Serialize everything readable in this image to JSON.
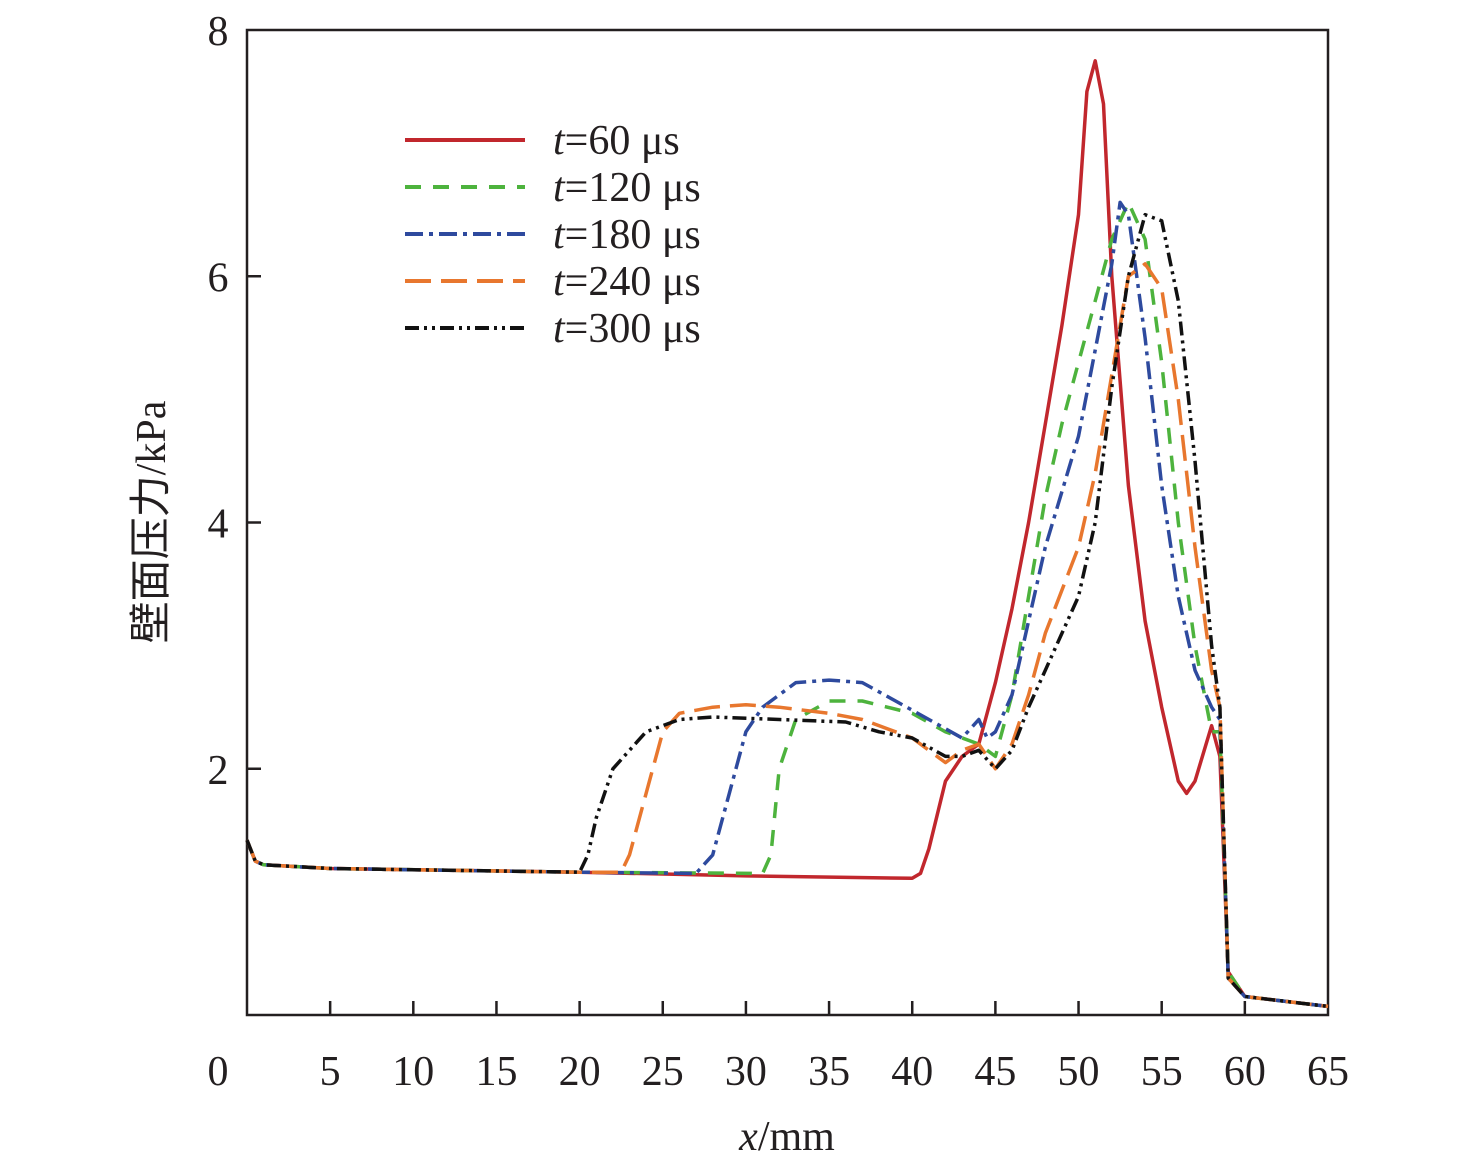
{
  "chart_data": {
    "type": "line",
    "title": "",
    "xlabel": {
      "var": "x",
      "unit": "/mm"
    },
    "ylabel": "壁面压力/kPa",
    "xlim": [
      0,
      65
    ],
    "ylim": [
      0,
      8
    ],
    "xticks": [
      0,
      5,
      10,
      15,
      20,
      25,
      30,
      35,
      40,
      45,
      50,
      55,
      60,
      65
    ],
    "yticks": [
      2,
      4,
      6,
      8
    ],
    "ytick_labels": [
      "2",
      "4",
      "6",
      "8"
    ],
    "yzero_label": "0",
    "grid": false,
    "legend_position": "top-left",
    "series": [
      {
        "name_var": "t",
        "name_rest": "=60 μs",
        "color": "#c1272d",
        "dash": "",
        "points": [
          [
            0,
            1.42
          ],
          [
            0.5,
            1.25
          ],
          [
            1,
            1.22
          ],
          [
            5,
            1.19
          ],
          [
            20,
            1.16
          ],
          [
            30,
            1.13
          ],
          [
            40,
            1.11
          ],
          [
            40.5,
            1.15
          ],
          [
            41,
            1.35
          ],
          [
            42,
            1.9
          ],
          [
            43,
            2.1
          ],
          [
            44,
            2.2
          ],
          [
            45,
            2.7
          ],
          [
            46,
            3.3
          ],
          [
            47,
            4.0
          ],
          [
            48,
            4.8
          ],
          [
            49,
            5.6
          ],
          [
            50,
            6.5
          ],
          [
            50.5,
            7.5
          ],
          [
            51,
            7.75
          ],
          [
            51.5,
            7.4
          ],
          [
            52,
            6.0
          ],
          [
            53,
            4.3
          ],
          [
            54,
            3.2
          ],
          [
            55,
            2.5
          ],
          [
            56,
            1.9
          ],
          [
            56.5,
            1.8
          ],
          [
            57,
            1.9
          ],
          [
            58,
            2.35
          ],
          [
            58.5,
            2.1
          ],
          [
            59,
            0.35
          ],
          [
            60,
            0.15
          ],
          [
            65,
            0.07
          ]
        ]
      },
      {
        "name_var": "t",
        "name_rest": "=120 μs",
        "color": "#4db33d",
        "dash": "16,12",
        "points": [
          [
            0,
            1.42
          ],
          [
            0.5,
            1.25
          ],
          [
            1,
            1.22
          ],
          [
            5,
            1.19
          ],
          [
            20,
            1.16
          ],
          [
            31,
            1.15
          ],
          [
            31.5,
            1.3
          ],
          [
            32,
            2.0
          ],
          [
            33,
            2.4
          ],
          [
            35,
            2.55
          ],
          [
            37,
            2.55
          ],
          [
            40,
            2.45
          ],
          [
            42,
            2.3
          ],
          [
            44,
            2.2
          ],
          [
            45,
            2.1
          ],
          [
            46,
            2.6
          ],
          [
            47,
            3.4
          ],
          [
            48,
            4.2
          ],
          [
            49,
            4.8
          ],
          [
            50,
            5.3
          ],
          [
            51,
            5.8
          ],
          [
            52,
            6.3
          ],
          [
            53,
            6.6
          ],
          [
            54,
            6.3
          ],
          [
            55,
            5.3
          ],
          [
            56,
            4.0
          ],
          [
            57,
            3.0
          ],
          [
            58,
            2.3
          ],
          [
            58.5,
            2.3
          ],
          [
            59,
            0.35
          ],
          [
            60,
            0.15
          ],
          [
            65,
            0.07
          ]
        ]
      },
      {
        "name_var": "t",
        "name_rest": "=180 μs",
        "color": "#2e4a9e",
        "dash": "18,6,4,6",
        "points": [
          [
            0,
            1.42
          ],
          [
            0.5,
            1.25
          ],
          [
            1,
            1.22
          ],
          [
            5,
            1.19
          ],
          [
            20,
            1.16
          ],
          [
            27,
            1.15
          ],
          [
            28,
            1.3
          ],
          [
            29,
            1.8
          ],
          [
            30,
            2.3
          ],
          [
            31,
            2.5
          ],
          [
            32,
            2.6
          ],
          [
            33,
            2.7
          ],
          [
            35,
            2.72
          ],
          [
            37,
            2.7
          ],
          [
            39,
            2.55
          ],
          [
            41,
            2.4
          ],
          [
            43,
            2.25
          ],
          [
            44,
            2.4
          ],
          [
            44.5,
            2.25
          ],
          [
            45,
            2.3
          ],
          [
            46,
            2.6
          ],
          [
            47,
            3.2
          ],
          [
            48,
            3.8
          ],
          [
            50,
            4.7
          ],
          [
            51,
            5.4
          ],
          [
            52,
            6.1
          ],
          [
            52.5,
            6.6
          ],
          [
            53,
            6.5
          ],
          [
            54,
            5.5
          ],
          [
            55,
            4.3
          ],
          [
            56,
            3.4
          ],
          [
            57,
            2.8
          ],
          [
            58,
            2.5
          ],
          [
            58.5,
            2.4
          ],
          [
            59,
            0.3
          ],
          [
            60,
            0.15
          ],
          [
            65,
            0.07
          ]
        ]
      },
      {
        "name_var": "t",
        "name_rest": "=240 μs",
        "color": "#e8772e",
        "dash": "26,10",
        "points": [
          [
            0,
            1.42
          ],
          [
            0.5,
            1.25
          ],
          [
            1,
            1.22
          ],
          [
            5,
            1.19
          ],
          [
            20,
            1.16
          ],
          [
            22.5,
            1.16
          ],
          [
            23,
            1.3
          ],
          [
            24,
            1.8
          ],
          [
            25,
            2.3
          ],
          [
            26,
            2.45
          ],
          [
            28,
            2.5
          ],
          [
            30,
            2.52
          ],
          [
            32,
            2.5
          ],
          [
            35,
            2.45
          ],
          [
            37,
            2.4
          ],
          [
            40,
            2.25
          ],
          [
            42,
            2.05
          ],
          [
            43,
            2.15
          ],
          [
            44,
            2.2
          ],
          [
            45,
            2.0
          ],
          [
            46,
            2.2
          ],
          [
            47,
            2.6
          ],
          [
            48,
            3.1
          ],
          [
            50,
            3.8
          ],
          [
            51,
            4.4
          ],
          [
            52,
            5.2
          ],
          [
            53,
            6.0
          ],
          [
            54,
            6.1
          ],
          [
            55,
            5.9
          ],
          [
            56,
            5.0
          ],
          [
            57,
            3.8
          ],
          [
            58,
            2.8
          ],
          [
            58.5,
            2.5
          ],
          [
            59,
            0.3
          ],
          [
            60,
            0.15
          ],
          [
            65,
            0.07
          ]
        ]
      },
      {
        "name_var": "t",
        "name_rest": "=300 μs",
        "color": "#111111",
        "dash": "14,5,3,5,3,5",
        "points": [
          [
            0,
            1.42
          ],
          [
            0.5,
            1.25
          ],
          [
            1,
            1.22
          ],
          [
            5,
            1.19
          ],
          [
            20,
            1.16
          ],
          [
            20.5,
            1.3
          ],
          [
            21,
            1.6
          ],
          [
            22,
            2.0
          ],
          [
            24,
            2.3
          ],
          [
            26,
            2.4
          ],
          [
            28,
            2.42
          ],
          [
            32,
            2.4
          ],
          [
            36,
            2.38
          ],
          [
            38,
            2.3
          ],
          [
            40,
            2.25
          ],
          [
            42,
            2.1
          ],
          [
            43,
            2.1
          ],
          [
            44,
            2.15
          ],
          [
            45,
            2.0
          ],
          [
            46,
            2.15
          ],
          [
            47,
            2.5
          ],
          [
            48,
            2.8
          ],
          [
            50,
            3.4
          ],
          [
            51,
            4.0
          ],
          [
            52,
            5.1
          ],
          [
            53,
            6.0
          ],
          [
            54,
            6.5
          ],
          [
            55,
            6.45
          ],
          [
            56,
            5.8
          ],
          [
            57,
            4.5
          ],
          [
            58,
            3.0
          ],
          [
            58.5,
            2.5
          ],
          [
            59,
            0.3
          ],
          [
            60,
            0.15
          ],
          [
            65,
            0.07
          ]
        ]
      }
    ]
  }
}
